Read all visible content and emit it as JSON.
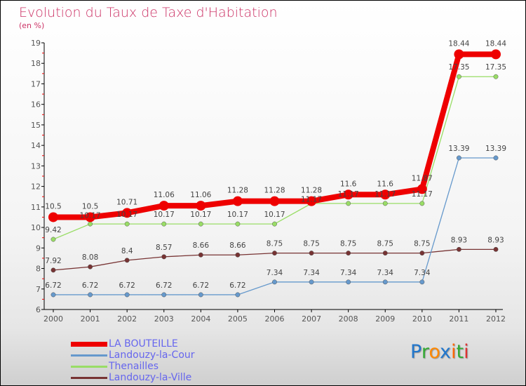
{
  "chart_data": {
    "type": "line",
    "title": "Evolution du Taux de Taxe d'Habitation",
    "subtitle": "(en %)",
    "x": [
      2000,
      2001,
      2002,
      2003,
      2004,
      2005,
      2006,
      2007,
      2008,
      2009,
      2010,
      2011,
      2012
    ],
    "ylim": [
      6,
      19
    ],
    "yticks": [
      6,
      7,
      8,
      9,
      10,
      11,
      12,
      13,
      14,
      15,
      16,
      17,
      18,
      19
    ],
    "series": [
      {
        "name": "LA BOUTEILLE",
        "color": "#ee0000",
        "values": [
          10.5,
          10.5,
          10.71,
          11.06,
          11.06,
          11.28,
          11.28,
          11.28,
          11.6,
          11.6,
          11.87,
          18.44,
          18.44
        ]
      },
      {
        "name": "Landouzy-la-Cour",
        "color": "#6699cc",
        "values": [
          6.72,
          6.72,
          6.72,
          6.72,
          6.72,
          6.72,
          7.34,
          7.34,
          7.34,
          7.34,
          7.34,
          13.39,
          13.39
        ]
      },
      {
        "name": "Thenailles",
        "color": "#99dd66",
        "values": [
          9.42,
          10.17,
          10.17,
          10.17,
          10.17,
          10.17,
          10.17,
          11.17,
          11.17,
          11.17,
          11.17,
          17.35,
          17.35
        ]
      },
      {
        "name": "Landouzy-la-Ville",
        "color": "#773333",
        "values": [
          7.92,
          8.08,
          8.4,
          8.57,
          8.66,
          8.66,
          8.75,
          8.75,
          8.75,
          8.75,
          8.75,
          8.93,
          8.93
        ]
      }
    ],
    "legend": "bottom-left"
  },
  "logo": {
    "letters": [
      "P",
      "r",
      "o",
      "x",
      "i",
      "t",
      "i"
    ],
    "colors": [
      "#2277cc",
      "#33aa33",
      "#ff8800",
      "#2277cc",
      "#ff6600",
      "#33aa33",
      "#dd3333"
    ]
  }
}
